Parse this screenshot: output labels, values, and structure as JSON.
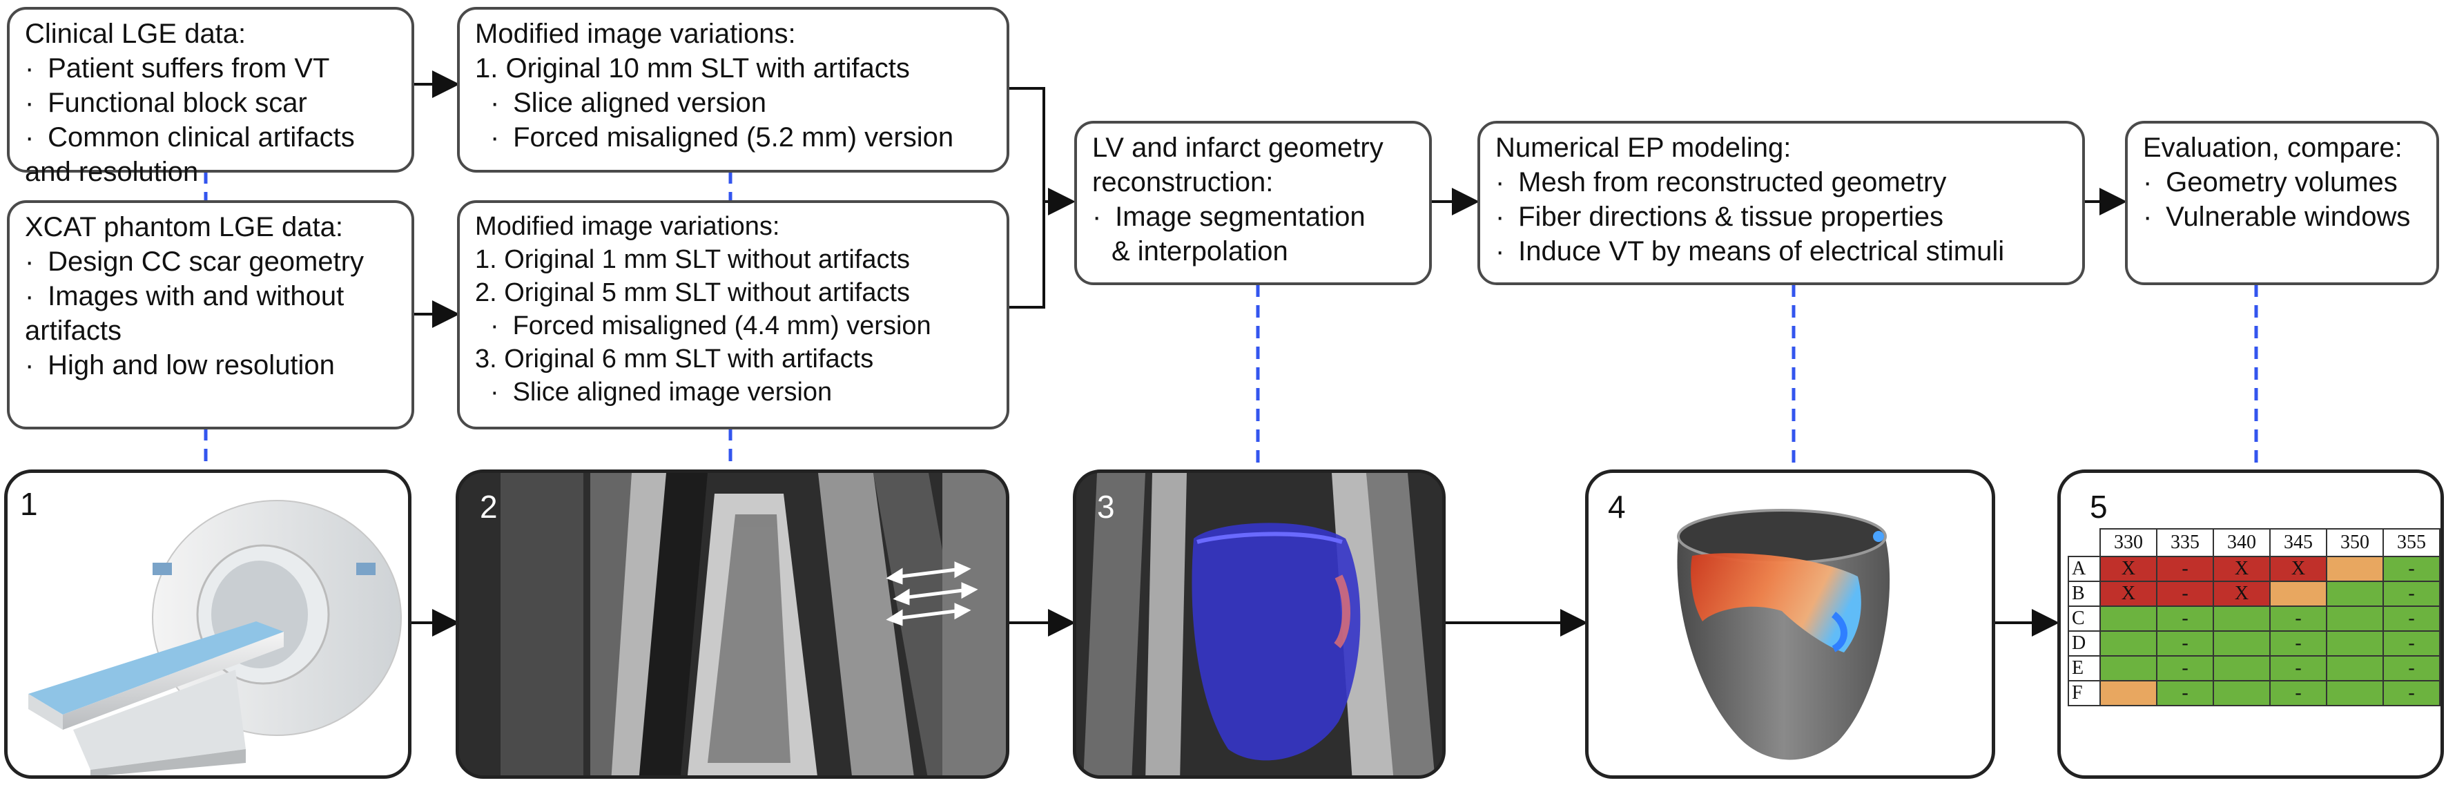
{
  "boxes": {
    "clinical": {
      "title": "Clinical LGE data:",
      "items": [
        "Patient suffers from VT",
        "Functional block scar",
        "Common clinical artifacts"
      ],
      "continuation": "and resolution"
    },
    "xcat": {
      "title": "XCAT phantom LGE data:",
      "items": [
        "Design CC scar geometry",
        "Images with and without"
      ],
      "continuation": "artifacts",
      "items2": [
        "High and low resolution"
      ]
    },
    "mod1": {
      "title": "Modified image variations:",
      "line1": "1. Original 10 mm SLT with artifacts",
      "subs": [
        "Slice aligned version",
        "Forced misaligned (5.2 mm) version"
      ]
    },
    "mod2": {
      "title": "Modified image variations:",
      "line1": "1. Original 1 mm SLT without artifacts",
      "line2": "2. Original 5 mm SLT without artifacts",
      "sub2": "Forced misaligned (4.4 mm) version",
      "line3": "3. Original 6 mm SLT with artifacts",
      "sub3": "Slice aligned image version"
    },
    "recon": {
      "title1": "LV and infarct geometry",
      "title2": "reconstruction:",
      "item": "Image segmentation",
      "continuation": "& interpolation"
    },
    "ep": {
      "title": "Numerical EP modeling:",
      "items": [
        "Mesh from reconstructed geometry",
        "Fiber directions & tissue properties",
        "Induce VT by means of electrical stimuli"
      ]
    },
    "eval": {
      "title": "Evaluation, compare:",
      "items": [
        "Geometry volumes",
        "Vulnerable windows"
      ]
    }
  },
  "bullet": "·",
  "panels": [
    "1",
    "2",
    "3",
    "4",
    "5"
  ],
  "table": {
    "columns": [
      "330",
      "335",
      "340",
      "345",
      "350",
      "355"
    ],
    "rows": [
      {
        "label": "A",
        "cells": [
          {
            "t": "X",
            "c": "red"
          },
          {
            "t": "-",
            "c": "red"
          },
          {
            "t": "X",
            "c": "red"
          },
          {
            "t": "X",
            "c": "red"
          },
          {
            "t": "",
            "c": "org"
          },
          {
            "t": "-",
            "c": "grn"
          }
        ]
      },
      {
        "label": "B",
        "cells": [
          {
            "t": "X",
            "c": "red"
          },
          {
            "t": "-",
            "c": "red"
          },
          {
            "t": "X",
            "c": "red"
          },
          {
            "t": "",
            "c": "org"
          },
          {
            "t": "",
            "c": "grn"
          },
          {
            "t": "-",
            "c": "grn"
          }
        ]
      },
      {
        "label": "C",
        "cells": [
          {
            "t": "",
            "c": "grn"
          },
          {
            "t": "-",
            "c": "grn"
          },
          {
            "t": "",
            "c": "grn"
          },
          {
            "t": "-",
            "c": "grn"
          },
          {
            "t": "",
            "c": "grn"
          },
          {
            "t": "-",
            "c": "grn"
          }
        ]
      },
      {
        "label": "D",
        "cells": [
          {
            "t": "",
            "c": "grn"
          },
          {
            "t": "-",
            "c": "grn"
          },
          {
            "t": "",
            "c": "grn"
          },
          {
            "t": "-",
            "c": "grn"
          },
          {
            "t": "",
            "c": "grn"
          },
          {
            "t": "-",
            "c": "grn"
          }
        ]
      },
      {
        "label": "E",
        "cells": [
          {
            "t": "",
            "c": "grn"
          },
          {
            "t": "-",
            "c": "grn"
          },
          {
            "t": "",
            "c": "grn"
          },
          {
            "t": "-",
            "c": "grn"
          },
          {
            "t": "",
            "c": "grn"
          },
          {
            "t": "-",
            "c": "grn"
          }
        ]
      },
      {
        "label": "F",
        "cells": [
          {
            "t": "",
            "c": "org"
          },
          {
            "t": "-",
            "c": "grn"
          },
          {
            "t": "",
            "c": "grn"
          },
          {
            "t": "-",
            "c": "grn"
          },
          {
            "t": "",
            "c": "grn"
          },
          {
            "t": "-",
            "c": "grn"
          }
        ]
      }
    ]
  },
  "colors": {
    "connector_dashed": "#3355ee",
    "red": "#c0302a",
    "green": "#6cb33f",
    "orange": "#e8a760",
    "lv_blue": "#3535c8"
  }
}
